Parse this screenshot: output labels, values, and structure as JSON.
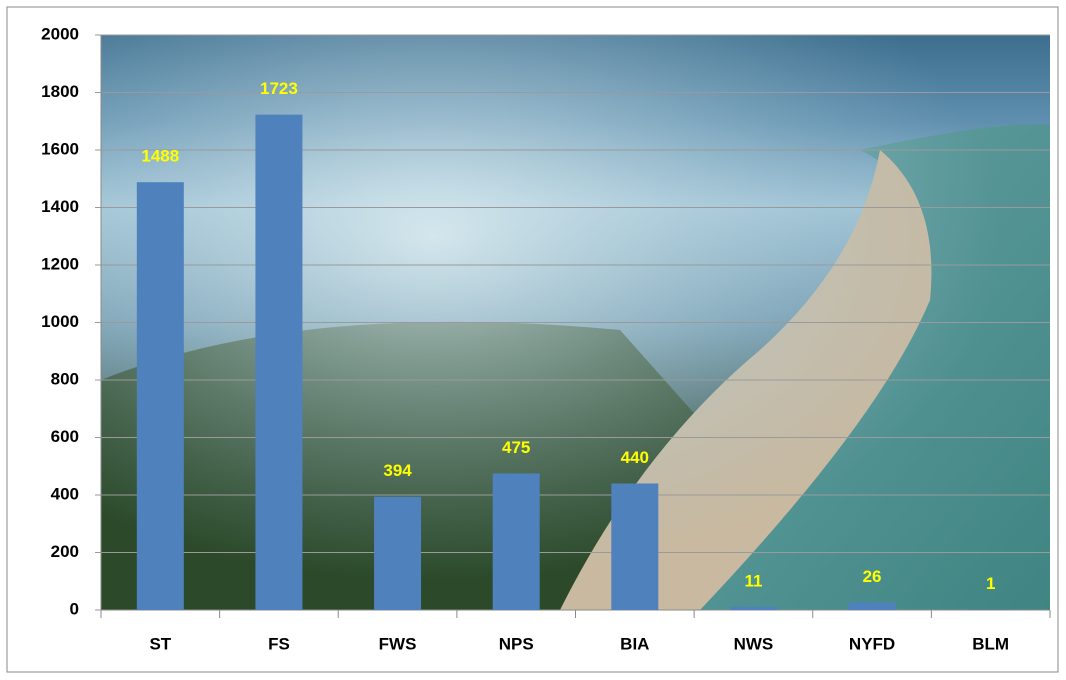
{
  "chart_data": {
    "type": "bar",
    "categories": [
      "ST",
      "FS",
      "FWS",
      "NPS",
      "BIA",
      "NWS",
      "NYFD",
      "BLM"
    ],
    "values": [
      1488,
      1723,
      394,
      475,
      440,
      11,
      26,
      1
    ],
    "color": "#4f81bd",
    "label_color": "#ffff00",
    "ylim": [
      0,
      2000
    ],
    "yticks": [
      0,
      200,
      400,
      600,
      800,
      1000,
      1200,
      1400,
      1600,
      1800,
      2000
    ],
    "grid": true
  }
}
